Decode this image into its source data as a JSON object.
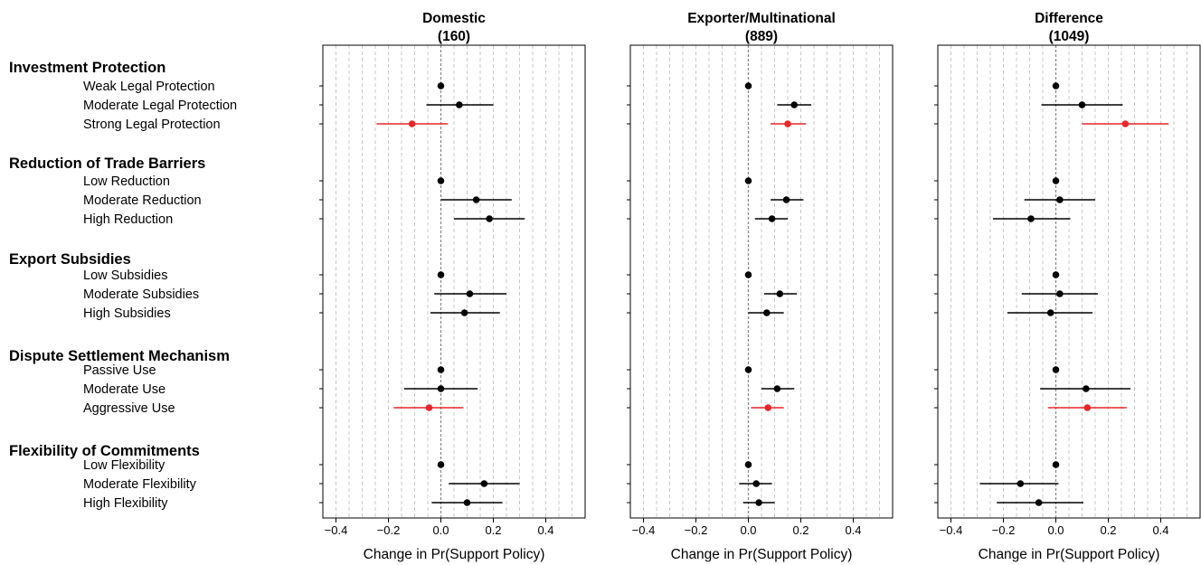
{
  "chart_data": {
    "type": "scatter",
    "xlabel": "Change in Pr(Support Policy)",
    "xlim": [
      -0.45,
      0.55
    ],
    "xticks": [
      "−0.4",
      "−0.2",
      "0.0",
      "0.2",
      "0.4"
    ],
    "xtick_values": [
      -0.4,
      -0.2,
      0,
      0.2,
      0.4
    ],
    "grid": "dashed vertical",
    "highlight_color": "#e8262a",
    "default_color": "#000000",
    "groups": [
      {
        "name": "Investment Protection",
        "levels": [
          "Weak Legal Protection",
          "Moderate Legal Protection",
          "Strong Legal Protection"
        ]
      },
      {
        "name": "Reduction of Trade Barriers",
        "levels": [
          "Low Reduction",
          "Moderate Reduction",
          "High Reduction"
        ]
      },
      {
        "name": "Export Subsidies",
        "levels": [
          "Low Subsidies",
          "Moderate Subsidies",
          "High Subsidies"
        ]
      },
      {
        "name": "Dispute Settlement Mechanism",
        "levels": [
          "Passive Use",
          "Moderate Use",
          "Aggressive Use"
        ]
      },
      {
        "name": "Flexibility of Commitments",
        "levels": [
          "Low Flexibility",
          "Moderate Flexibility",
          "High Flexibility"
        ]
      }
    ],
    "panels": [
      {
        "title": "Domestic",
        "subtitle": "(160)",
        "points": [
          {
            "est": 0,
            "lo": 0,
            "hi": 0,
            "red": false
          },
          {
            "est": 0.07,
            "lo": -0.055,
            "hi": 0.2,
            "red": false
          },
          {
            "est": -0.11,
            "lo": -0.245,
            "hi": 0.027,
            "red": true
          },
          {
            "est": 0,
            "lo": 0,
            "hi": 0,
            "red": false
          },
          {
            "est": 0.135,
            "lo": 0,
            "hi": 0.27,
            "red": false
          },
          {
            "est": 0.185,
            "lo": 0.05,
            "hi": 0.32,
            "red": false
          },
          {
            "est": 0,
            "lo": 0,
            "hi": 0,
            "red": false
          },
          {
            "est": 0.11,
            "lo": -0.025,
            "hi": 0.25,
            "red": false
          },
          {
            "est": 0.09,
            "lo": -0.04,
            "hi": 0.225,
            "red": false
          },
          {
            "est": 0,
            "lo": 0,
            "hi": 0,
            "red": false
          },
          {
            "est": 0,
            "lo": -0.14,
            "hi": 0.14,
            "red": false
          },
          {
            "est": -0.045,
            "lo": -0.18,
            "hi": 0.085,
            "red": true
          },
          {
            "est": 0,
            "lo": 0,
            "hi": 0,
            "red": false
          },
          {
            "est": 0.165,
            "lo": 0.03,
            "hi": 0.3,
            "red": false
          },
          {
            "est": 0.1,
            "lo": -0.035,
            "hi": 0.235,
            "red": false
          }
        ]
      },
      {
        "title": "Exporter/Multinational",
        "subtitle": "(889)",
        "points": [
          {
            "est": 0,
            "lo": 0,
            "hi": 0,
            "red": false
          },
          {
            "est": 0.175,
            "lo": 0.11,
            "hi": 0.24,
            "red": false
          },
          {
            "est": 0.15,
            "lo": 0.085,
            "hi": 0.22,
            "red": true
          },
          {
            "est": 0,
            "lo": 0,
            "hi": 0,
            "red": false
          },
          {
            "est": 0.145,
            "lo": 0.085,
            "hi": 0.21,
            "red": false
          },
          {
            "est": 0.09,
            "lo": 0.025,
            "hi": 0.15,
            "red": false
          },
          {
            "est": 0,
            "lo": 0,
            "hi": 0,
            "red": false
          },
          {
            "est": 0.12,
            "lo": 0.06,
            "hi": 0.185,
            "red": false
          },
          {
            "est": 0.07,
            "lo": 0,
            "hi": 0.135,
            "red": false
          },
          {
            "est": 0,
            "lo": 0,
            "hi": 0,
            "red": false
          },
          {
            "est": 0.11,
            "lo": 0.05,
            "hi": 0.175,
            "red": false
          },
          {
            "est": 0.075,
            "lo": 0.01,
            "hi": 0.135,
            "red": true
          },
          {
            "est": 0,
            "lo": 0,
            "hi": 0,
            "red": false
          },
          {
            "est": 0.03,
            "lo": -0.035,
            "hi": 0.09,
            "red": false
          },
          {
            "est": 0.04,
            "lo": -0.02,
            "hi": 0.1,
            "red": false
          }
        ]
      },
      {
        "title": "Difference",
        "subtitle": "(1049)",
        "points": [
          {
            "est": 0,
            "lo": 0,
            "hi": 0,
            "red": false
          },
          {
            "est": 0.1,
            "lo": -0.055,
            "hi": 0.255,
            "red": false
          },
          {
            "est": 0.265,
            "lo": 0.1,
            "hi": 0.43,
            "red": true
          },
          {
            "est": 0,
            "lo": 0,
            "hi": 0,
            "red": false
          },
          {
            "est": 0.015,
            "lo": -0.12,
            "hi": 0.15,
            "red": false
          },
          {
            "est": -0.095,
            "lo": -0.24,
            "hi": 0.055,
            "red": false
          },
          {
            "est": 0,
            "lo": 0,
            "hi": 0,
            "red": false
          },
          {
            "est": 0.015,
            "lo": -0.13,
            "hi": 0.16,
            "red": false
          },
          {
            "est": -0.02,
            "lo": -0.185,
            "hi": 0.14,
            "red": false
          },
          {
            "est": 0,
            "lo": 0,
            "hi": 0,
            "red": false
          },
          {
            "est": 0.115,
            "lo": -0.06,
            "hi": 0.285,
            "red": false
          },
          {
            "est": 0.12,
            "lo": -0.03,
            "hi": 0.27,
            "red": true
          },
          {
            "est": 0,
            "lo": 0,
            "hi": 0,
            "red": false
          },
          {
            "est": -0.135,
            "lo": -0.29,
            "hi": 0.01,
            "red": false
          },
          {
            "est": -0.065,
            "lo": -0.225,
            "hi": 0.105,
            "red": false
          }
        ]
      }
    ]
  }
}
